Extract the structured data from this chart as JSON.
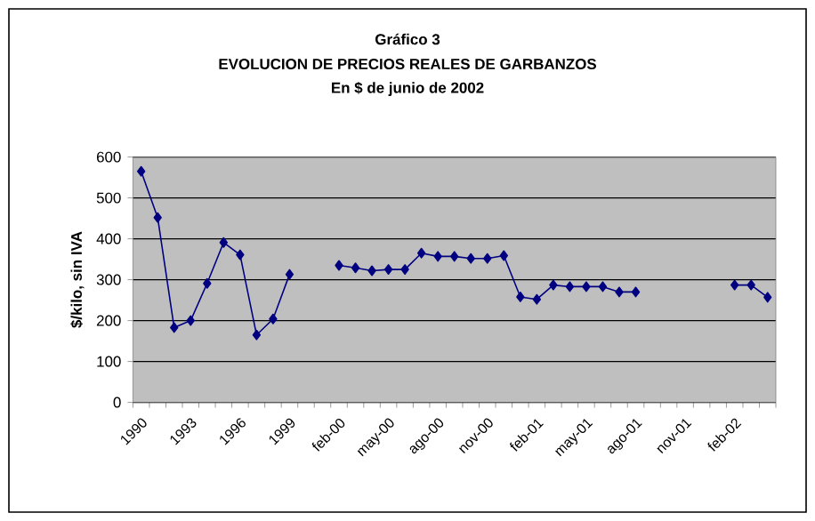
{
  "chart_data": {
    "type": "line",
    "annotations": [
      "Gráfico 3"
    ],
    "title": "EVOLUCION DE PRECIOS REALES DE GARBANZOS",
    "subtitle": "En $ de junio de 2002",
    "ylabel": "$/kilo, sin IVA",
    "categories": [
      "1990",
      null,
      null,
      "1993",
      null,
      null,
      "1996",
      null,
      null,
      "1999",
      null,
      null,
      "feb-00",
      null,
      null,
      "may-00",
      null,
      null,
      "ago-00",
      null,
      null,
      "nov-00",
      null,
      null,
      "feb-01",
      null,
      null,
      "may-01",
      null,
      null,
      "ago-01",
      null,
      null,
      "nov-01",
      null,
      null,
      "feb-02",
      null,
      null
    ],
    "series": [
      {
        "color": "#000080",
        "values": [
          565,
          452,
          183,
          200,
          291,
          391,
          361,
          165,
          204,
          313,
          null,
          null,
          335,
          329,
          322,
          325,
          325,
          365,
          357,
          357,
          352,
          352,
          359,
          258,
          252,
          287,
          283,
          283,
          283,
          270,
          270,
          null,
          null,
          null,
          null,
          null,
          287,
          287,
          257
        ]
      }
    ],
    "ylim": [
      0,
      600
    ],
    "yticks": [
      0,
      100,
      200,
      300,
      400,
      500,
      600
    ],
    "grid": "y",
    "marker": "diamond",
    "line_style": "solid"
  }
}
